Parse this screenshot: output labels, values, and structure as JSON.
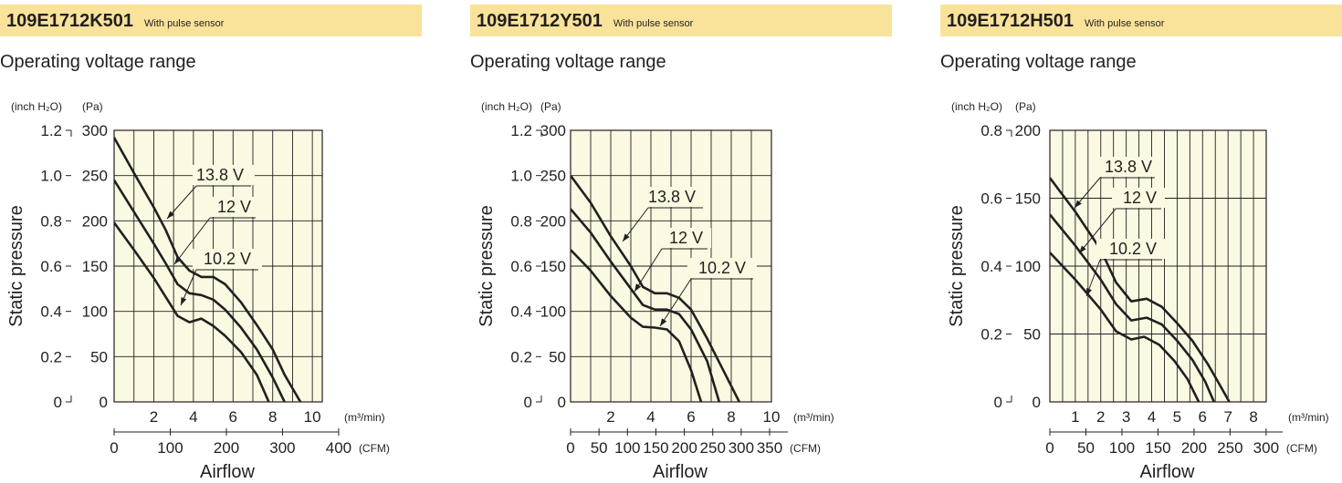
{
  "chart_data": [
    {
      "type": "line",
      "model": "109E1712K501",
      "sensor_note": "With pulse sensor",
      "title": "Operating voltage range",
      "xlabel": "Airflow",
      "ylabel": "Static pressure",
      "x_unit_metric": "(m³/min)",
      "x_unit_imperial": "(CFM)",
      "y_unit_imperial": "(inch H₂O)",
      "y_unit_metric": "(Pa)",
      "xlim": [
        0,
        10.5
      ],
      "ylim": [
        0,
        300
      ],
      "x_major_ticks": [
        2,
        4,
        6,
        8,
        10
      ],
      "x_major_labels": [
        "2",
        "4",
        "6",
        "8",
        "10"
      ],
      "x_grid_step": 1,
      "cfm_ticks": [
        "0",
        "100",
        "200",
        "300",
        "400"
      ],
      "cfm_max": 400,
      "y_ticks_pa": [
        "300",
        "250",
        "200",
        "150",
        "100",
        "50",
        "0"
      ],
      "y_ticks_inch": [
        "1.2",
        "1.0",
        "0.8",
        "0.6",
        "0.4",
        "0.2",
        "0"
      ],
      "grid": true,
      "series": [
        {
          "name": "13.8 V",
          "x": [
            0,
            1,
            2,
            2.6,
            3.2,
            3.8,
            4.4,
            5,
            5.6,
            6.4,
            7.2,
            8,
            8.6,
            9.4
          ],
          "y": [
            292,
            253,
            215,
            190,
            160,
            145,
            138,
            138,
            130,
            110,
            85,
            58,
            30,
            0
          ]
        },
        {
          "name": "12 V",
          "x": [
            0,
            1,
            2,
            2.6,
            3.2,
            3.8,
            4.4,
            5,
            5.6,
            6.4,
            7.2,
            8,
            8.6
          ],
          "y": [
            245,
            210,
            175,
            153,
            130,
            120,
            118,
            113,
            102,
            82,
            58,
            27,
            0
          ]
        },
        {
          "name": "10.2 V",
          "x": [
            0,
            1,
            2,
            2.6,
            3.2,
            3.8,
            4.4,
            5,
            5.6,
            6.4,
            7.2,
            7.8
          ],
          "y": [
            198,
            168,
            137,
            116,
            95,
            88,
            92,
            84,
            73,
            55,
            30,
            0
          ]
        }
      ]
    },
    {
      "type": "line",
      "model": "109E1712Y501",
      "sensor_note": "With pulse sensor",
      "title": "Operating voltage range",
      "xlabel": "Airflow",
      "ylabel": "Static pressure",
      "x_unit_metric": "(m³/min)",
      "x_unit_imperial": "(CFM)",
      "y_unit_imperial": "(inch H₂O)",
      "y_unit_metric": "(Pa)",
      "xlim": [
        0,
        10
      ],
      "ylim": [
        0,
        300
      ],
      "x_major_ticks": [
        2,
        4,
        6,
        8,
        10
      ],
      "x_major_labels": [
        "2",
        "4",
        "6",
        "8",
        "10"
      ],
      "x_grid_step": 1,
      "cfm_ticks": [
        "0",
        "50",
        "100",
        "150",
        "200",
        "250",
        "300",
        "350"
      ],
      "cfm_max": 350,
      "y_ticks_pa": [
        "300",
        "250",
        "200",
        "150",
        "100",
        "50",
        "0"
      ],
      "y_ticks_inch": [
        "1.2",
        "1.0",
        "0.8",
        "0.6",
        "0.4",
        "0.2",
        "0"
      ],
      "grid": true,
      "series": [
        {
          "name": "13.8 V",
          "x": [
            0,
            1,
            2,
            3,
            3.6,
            4.2,
            4.8,
            5.4,
            6,
            6.8,
            7.6,
            8.4
          ],
          "y": [
            250,
            220,
            183,
            150,
            127,
            120,
            120,
            115,
            102,
            70,
            35,
            0
          ]
        },
        {
          "name": "12 V",
          "x": [
            0,
            1,
            2,
            3,
            3.6,
            4.2,
            4.8,
            5.4,
            6,
            6.8,
            7.4
          ],
          "y": [
            213,
            187,
            155,
            125,
            107,
            102,
            102,
            97,
            80,
            45,
            0
          ]
        },
        {
          "name": "10.2 V",
          "x": [
            0,
            1,
            2,
            3,
            3.6,
            4.2,
            4.8,
            5.4,
            6,
            6.5
          ],
          "y": [
            168,
            145,
            117,
            93,
            83,
            82,
            80,
            67,
            35,
            0
          ]
        }
      ]
    },
    {
      "type": "line",
      "model": "109E1712H501",
      "sensor_note": "With pulse sensor",
      "title": "Operating voltage range",
      "xlabel": "Airflow",
      "ylabel": "Static pressure",
      "x_unit_metric": "(m³/min)",
      "x_unit_imperial": "(CFM)",
      "y_unit_imperial": "(inch H₂O)",
      "y_unit_metric": "(Pa)",
      "xlim": [
        0,
        8.5
      ],
      "ylim": [
        0,
        200
      ],
      "x_major_ticks": [
        1,
        2,
        3,
        4,
        5,
        6,
        7,
        8
      ],
      "x_major_labels": [
        "1",
        "2",
        "3",
        "4",
        "5",
        "6",
        "7",
        "8"
      ],
      "x_grid_step": 0.5,
      "cfm_ticks": [
        "0",
        "50",
        "100",
        "150",
        "200",
        "250",
        "300"
      ],
      "cfm_max": 300,
      "y_ticks_pa": [
        "200",
        "150",
        "100",
        "50",
        "0"
      ],
      "y_ticks_inch": [
        "0.8",
        "0.6",
        "0.4",
        "0.2",
        "0"
      ],
      "grid": true,
      "series": [
        {
          "name": "13.8 V",
          "x": [
            0,
            1,
            2,
            2.6,
            3.2,
            3.8,
            4.4,
            5,
            5.6,
            6.2,
            6.6,
            7.05
          ],
          "y": [
            165,
            140,
            112,
            88,
            74,
            76,
            70,
            58,
            45,
            28,
            15,
            0
          ]
        },
        {
          "name": "12 V",
          "x": [
            0,
            1,
            2,
            2.6,
            3.2,
            3.8,
            4.4,
            5,
            5.6,
            6.1,
            6.45
          ],
          "y": [
            138,
            115,
            90,
            72,
            60,
            62,
            57,
            45,
            31,
            15,
            0
          ]
        },
        {
          "name": "10.2 V",
          "x": [
            0,
            1,
            2,
            2.6,
            3.2,
            3.7,
            4.3,
            4.9,
            5.4,
            5.85
          ],
          "y": [
            110,
            90,
            68,
            52,
            46,
            48,
            42,
            30,
            17,
            0
          ]
        }
      ]
    }
  ]
}
